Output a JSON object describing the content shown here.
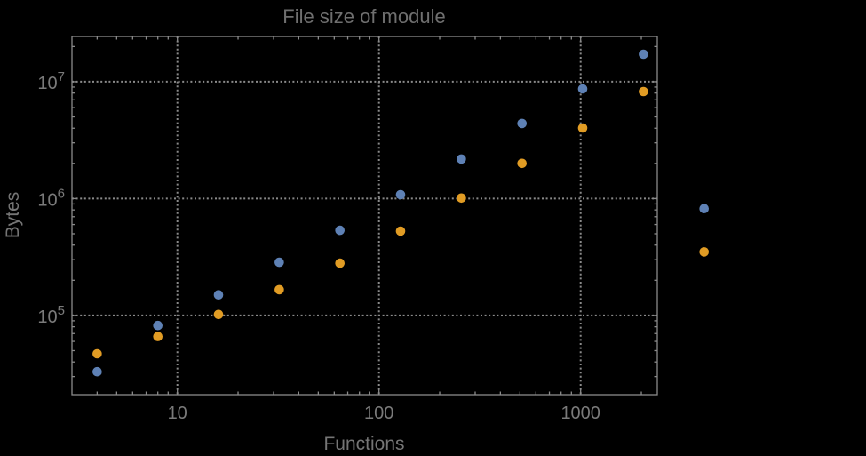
{
  "window": {
    "background": "#000000"
  },
  "chart_data": {
    "type": "scatter",
    "title": "File size of module",
    "xlabel": "Functions",
    "ylabel": "Bytes",
    "x_scale": "log",
    "y_scale": "log",
    "xlim": [
      3,
      2400
    ],
    "ylim": [
      21000,
      24400000
    ],
    "grid": "dotted gray gridlines at decade majors; frame with inward log ticks on all four sides",
    "legend": "none",
    "x_ticks": [
      {
        "value": 10,
        "label": "10"
      },
      {
        "value": 100,
        "label": "100"
      },
      {
        "value": 1000,
        "label": "1000"
      }
    ],
    "y_ticks": [
      {
        "value": 100000,
        "label": "10^5",
        "base": "10",
        "exp": "5"
      },
      {
        "value": 1000000,
        "label": "10^6",
        "base": "10",
        "exp": "6"
      },
      {
        "value": 10000000,
        "label": "10^7",
        "base": "10",
        "exp": "7"
      }
    ],
    "x": [
      4,
      8,
      16,
      32,
      64,
      128,
      256,
      512,
      1024,
      2048,
      4096
    ],
    "series": [
      {
        "name": "blue",
        "color": "#5E81B5",
        "values": [
          33000,
          82000,
          150000,
          285000,
          535000,
          1080000,
          2180000,
          4390000,
          8690000,
          17200000,
          820000
        ]
      },
      {
        "name": "orange",
        "color": "#E19C24",
        "values": [
          47000,
          66000,
          102000,
          166000,
          280000,
          527000,
          1010000,
          2000000,
          4020000,
          8240000,
          350000
        ]
      }
    ],
    "note": "The last pair of points (x≈4096) is rendered outside the right edge of the plot frame."
  },
  "colors": {
    "background": "#000000",
    "frame": "#8a8a8a",
    "gridline": "#8a8a8a",
    "title_text": "#6f6f6f",
    "axis_label_text": "#757575",
    "tick_label_text": "#7a7a7a",
    "series_blue": "#5E81B5",
    "series_orange": "#E19C24"
  }
}
